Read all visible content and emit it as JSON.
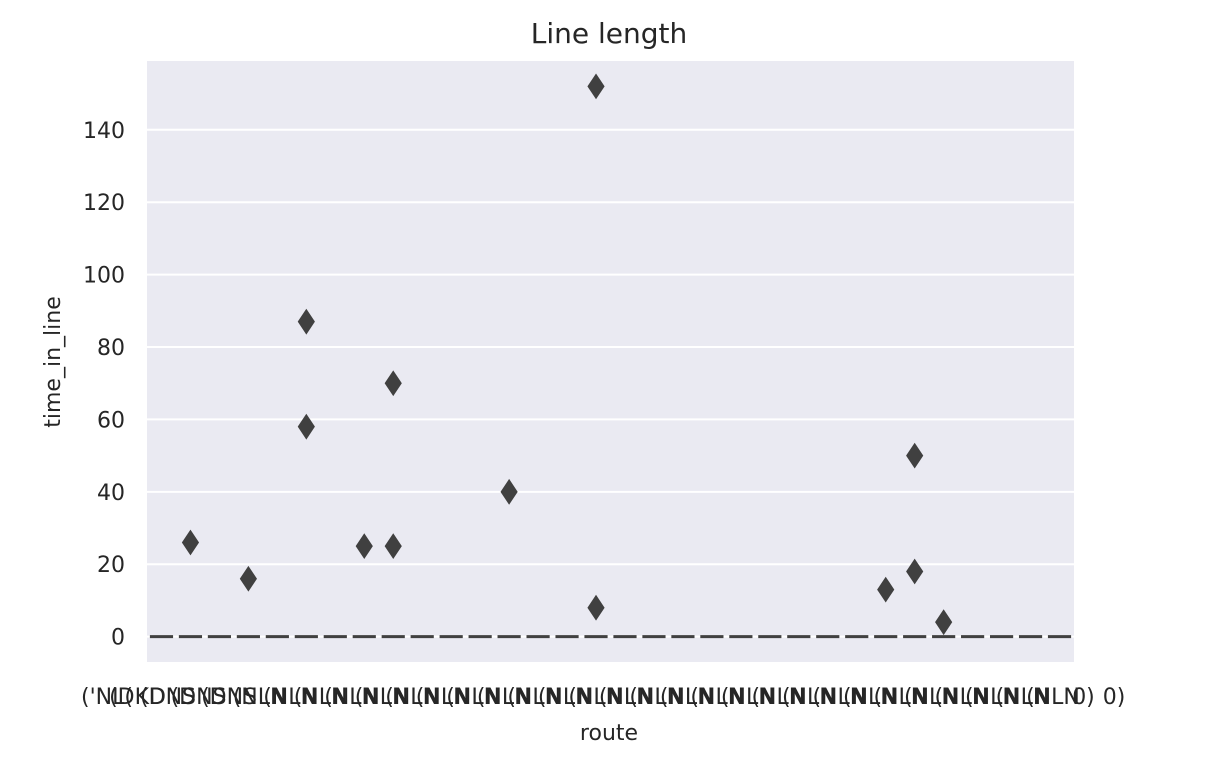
{
  "chart_data": {
    "type": "box",
    "title": "Line length",
    "xlabel": "route",
    "ylabel": "time_in_line",
    "ylim": [
      -7,
      159
    ],
    "yticks": [
      0,
      20,
      40,
      60,
      80,
      100,
      120,
      140
    ],
    "category_count": 32,
    "median_line": 0,
    "x_tick_labels_overlapping": [
      "('NL(",
      "(DKD",
      "(DNS",
      "(DNS",
      "(DNS",
      "(NLN",
      "(NLN",
      "(NLN",
      "(NLN",
      "(NLN",
      "(NLN",
      "(NLN",
      "(NLN",
      "(NLN",
      "(NLN",
      "(NLN",
      "(NLN",
      "(NLN",
      "(NLN",
      "(NLN",
      "(NLN",
      "(NLN",
      "(NLN",
      "(NLN",
      "(NLN",
      "(NLN",
      "(NLN",
      "(NLN",
      "(NLN",
      "(NLN",
      "(NLN",
      "(NLN",
      "0)",
      "0)"
    ],
    "outliers": [
      {
        "category_index": 1,
        "value": 26
      },
      {
        "category_index": 3,
        "value": 16
      },
      {
        "category_index": 5,
        "value": 87
      },
      {
        "category_index": 5,
        "value": 58
      },
      {
        "category_index": 7,
        "value": 25
      },
      {
        "category_index": 8,
        "value": 70
      },
      {
        "category_index": 8,
        "value": 25
      },
      {
        "category_index": 12,
        "value": 40
      },
      {
        "category_index": 15,
        "value": 152
      },
      {
        "category_index": 15,
        "value": 8
      },
      {
        "category_index": 25,
        "value": 13
      },
      {
        "category_index": 26,
        "value": 50
      },
      {
        "category_index": 26,
        "value": 18
      },
      {
        "category_index": 27,
        "value": 4
      }
    ],
    "grid": true,
    "colors": {
      "background": "#eaeaf2",
      "grid": "#ffffff",
      "marker": "#404040",
      "median": "#404040",
      "text": "#262626"
    }
  }
}
